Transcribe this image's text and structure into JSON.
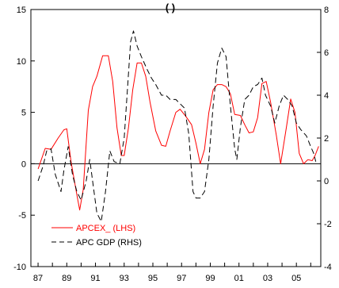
{
  "chart_data": {
    "type": "line",
    "title": "(   )",
    "x_ticks": [
      "87",
      "89",
      "91",
      "93",
      "95",
      "97",
      "99",
      "01",
      "03",
      "05"
    ],
    "xlim": [
      1986.5,
      2006.7
    ],
    "left_axis": {
      "ylim": [
        -10,
        15
      ],
      "ticks": [
        -10,
        -5,
        0,
        5,
        10,
        15
      ]
    },
    "right_axis": {
      "ylim": [
        -4,
        8
      ],
      "ticks": [
        -4,
        -2,
        0,
        2,
        4,
        6,
        8
      ]
    },
    "legend_placement": "bottom-left",
    "series": [
      {
        "name": "APCEX_ (LHS)",
        "axis": "left",
        "color": "#ff0000",
        "style": "solid",
        "points": [
          [
            1987.0,
            -0.5
          ],
          [
            1987.5,
            1.5
          ],
          [
            1987.9,
            1.4
          ],
          [
            1988.4,
            2.5
          ],
          [
            1988.8,
            3.3
          ],
          [
            1989.0,
            3.4
          ],
          [
            1989.3,
            0.2
          ],
          [
            1989.7,
            -3.0
          ],
          [
            1989.9,
            -4.5
          ],
          [
            1990.15,
            -2.5
          ],
          [
            1990.5,
            5.2
          ],
          [
            1990.8,
            7.5
          ],
          [
            1991.1,
            8.5
          ],
          [
            1991.5,
            10.5
          ],
          [
            1991.9,
            10.5
          ],
          [
            1992.2,
            8.0
          ],
          [
            1992.5,
            3.5
          ],
          [
            1992.8,
            0.8
          ],
          [
            1993.0,
            0.8
          ],
          [
            1993.3,
            3.5
          ],
          [
            1993.6,
            7.2
          ],
          [
            1993.9,
            9.8
          ],
          [
            1994.2,
            9.8
          ],
          [
            1994.5,
            8.5
          ],
          [
            1994.8,
            6.0
          ],
          [
            1995.2,
            3.2
          ],
          [
            1995.6,
            1.8
          ],
          [
            1995.9,
            1.7
          ],
          [
            1996.2,
            3.2
          ],
          [
            1996.6,
            5.0
          ],
          [
            1996.9,
            5.3
          ],
          [
            1997.3,
            4.6
          ],
          [
            1997.7,
            3.8
          ],
          [
            1998.0,
            2.0
          ],
          [
            1998.3,
            0.0
          ],
          [
            1998.6,
            1.4
          ],
          [
            1998.9,
            5.0
          ],
          [
            1999.2,
            7.2
          ],
          [
            1999.5,
            7.7
          ],
          [
            1999.8,
            7.7
          ],
          [
            2000.1,
            7.5
          ],
          [
            2000.4,
            6.8
          ],
          [
            2000.7,
            4.8
          ],
          [
            2001.1,
            4.7
          ],
          [
            2001.4,
            3.8
          ],
          [
            2001.7,
            3.0
          ],
          [
            2002.0,
            3.1
          ],
          [
            2002.3,
            4.5
          ],
          [
            2002.6,
            7.8
          ],
          [
            2002.9,
            8.0
          ],
          [
            2003.2,
            6.0
          ],
          [
            2003.6,
            2.8
          ],
          [
            2003.9,
            0.0
          ],
          [
            2004.3,
            3.5
          ],
          [
            2004.6,
            6.3
          ],
          [
            2004.9,
            5.0
          ],
          [
            2005.2,
            1.0
          ],
          [
            2005.5,
            0.0
          ],
          [
            2005.8,
            0.4
          ],
          [
            2006.1,
            0.3
          ],
          [
            2006.3,
            0.8
          ],
          [
            2006.55,
            1.7
          ]
        ]
      },
      {
        "name": "APC GDP (RHS)",
        "axis": "right",
        "color": "#000000",
        "style": "dashed",
        "points": [
          [
            1987.0,
            0.0
          ],
          [
            1987.35,
            0.7
          ],
          [
            1987.6,
            1.4
          ],
          [
            1987.9,
            1.5
          ],
          [
            1988.2,
            0.3
          ],
          [
            1988.6,
            -0.5
          ],
          [
            1988.8,
            0.5
          ],
          [
            1989.1,
            1.6
          ],
          [
            1989.4,
            0.3
          ],
          [
            1989.7,
            -0.5
          ],
          [
            1990.0,
            -0.9
          ],
          [
            1990.35,
            0.0
          ],
          [
            1990.6,
            1.0
          ],
          [
            1990.8,
            0.0
          ],
          [
            1991.1,
            -1.5
          ],
          [
            1991.4,
            -1.9
          ],
          [
            1991.7,
            -0.5
          ],
          [
            1992.0,
            1.4
          ],
          [
            1992.3,
            0.9
          ],
          [
            1992.7,
            0.8
          ],
          [
            1993.0,
            2.0
          ],
          [
            1993.2,
            4.0
          ],
          [
            1993.45,
            6.5
          ],
          [
            1993.65,
            7.0
          ],
          [
            1993.9,
            6.3
          ],
          [
            1994.2,
            5.8
          ],
          [
            1994.6,
            5.2
          ],
          [
            1994.9,
            4.8
          ],
          [
            1995.2,
            4.5
          ],
          [
            1995.6,
            4.0
          ],
          [
            1995.9,
            4.0
          ],
          [
            1996.2,
            3.8
          ],
          [
            1996.6,
            3.8
          ],
          [
            1996.9,
            3.6
          ],
          [
            1997.2,
            3.4
          ],
          [
            1997.5,
            2.2
          ],
          [
            1997.8,
            -0.5
          ],
          [
            1998.0,
            -0.8
          ],
          [
            1998.3,
            -0.8
          ],
          [
            1998.6,
            -0.5
          ],
          [
            1998.9,
            1.0
          ],
          [
            1999.2,
            3.5
          ],
          [
            1999.5,
            5.5
          ],
          [
            1999.8,
            6.2
          ],
          [
            2000.1,
            5.8
          ],
          [
            2000.4,
            3.5
          ],
          [
            2000.7,
            1.5
          ],
          [
            2000.85,
            1.0
          ],
          [
            2001.1,
            2.5
          ],
          [
            2001.4,
            3.8
          ],
          [
            2001.7,
            4.0
          ],
          [
            2002.0,
            4.4
          ],
          [
            2002.3,
            4.5
          ],
          [
            2002.6,
            4.8
          ],
          [
            2002.85,
            4.0
          ],
          [
            2003.2,
            3.5
          ],
          [
            2003.5,
            2.7
          ],
          [
            2003.8,
            3.5
          ],
          [
            2004.1,
            4.0
          ],
          [
            2004.4,
            3.8
          ],
          [
            2004.7,
            3.5
          ],
          [
            2005.0,
            2.7
          ],
          [
            2005.3,
            2.4
          ],
          [
            2005.7,
            2.1
          ],
          [
            2006.0,
            1.6
          ],
          [
            2006.2,
            1.3
          ],
          [
            2006.35,
            0.9
          ]
        ]
      }
    ]
  }
}
